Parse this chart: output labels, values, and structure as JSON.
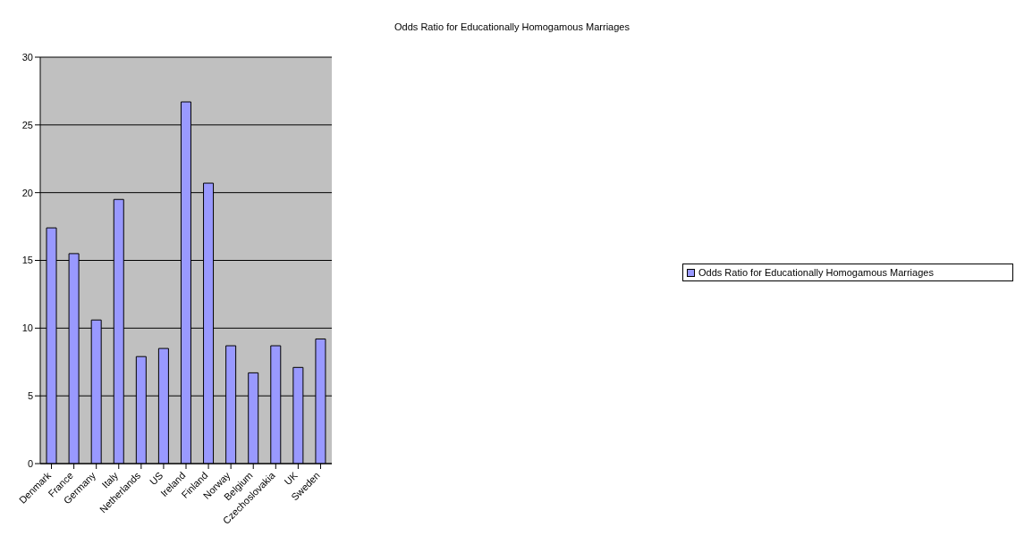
{
  "chart_data": {
    "type": "bar",
    "title": "Odds Ratio for Educationally Homogamous Marriages",
    "categories": [
      "Denmark",
      "France",
      "Germany",
      "Italy",
      "Netherlands",
      "US",
      "Ireland",
      "Finland",
      "Norway",
      "Belgium",
      "Czechoslovakia",
      "UK",
      "Sweden"
    ],
    "series": [
      {
        "name": "Odds Ratio for Educationally Homogamous Marriages",
        "color": "#9999ff",
        "values": [
          17.4,
          15.5,
          10.6,
          19.5,
          7.9,
          8.5,
          26.7,
          20.7,
          8.7,
          6.7,
          8.7,
          7.1,
          9.2
        ]
      }
    ],
    "ylim": [
      0,
      30
    ],
    "yticks": [
      0,
      5,
      10,
      15,
      20,
      25,
      30
    ],
    "grid": "y",
    "legend": "right"
  }
}
